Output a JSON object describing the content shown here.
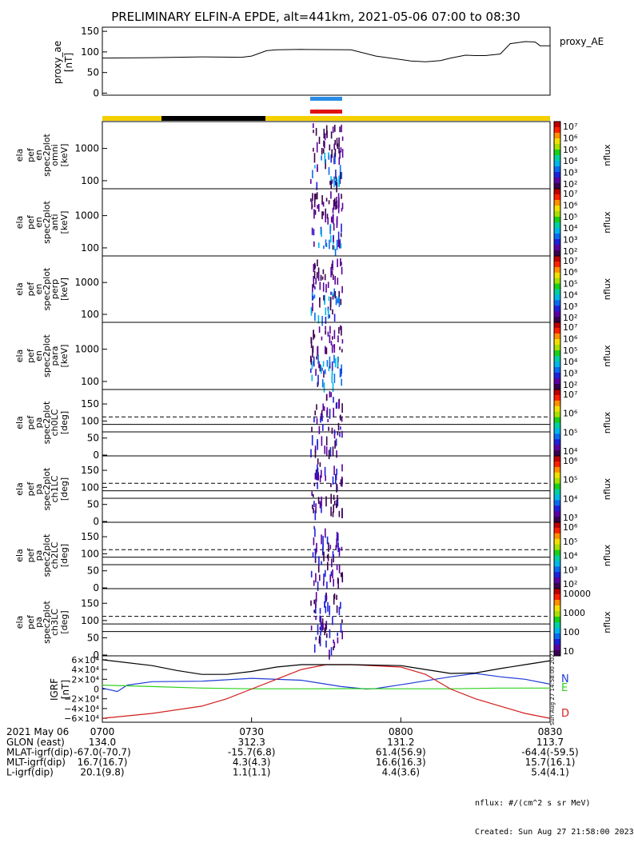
{
  "title": "PRELIMINARY ELFIN-A EPDE, alt=441km, 2021-05-06 07:00 to 08:30",
  "colors": {
    "band_yellow": "#f5d000",
    "band_black": "#000000",
    "indicator_blue": "#2b8ce8",
    "indicator_red": "#e01010",
    "grf_N": "#1f3bd6",
    "grf_E": "#2fd11f",
    "grf_D": "#d21d1d"
  },
  "chart_data": [
    {
      "type": "line",
      "id": "proxy_ae",
      "ylabel": "proxy_ae\n[nT]",
      "legend": "proxy_AE",
      "ylim": [
        -5,
        160
      ],
      "yticks": [
        0,
        50,
        100,
        150
      ],
      "x_minutes": [
        0,
        10,
        20,
        28,
        30,
        33,
        35,
        40,
        50,
        55,
        62,
        65,
        68,
        70,
        73,
        75,
        77,
        80,
        82,
        85,
        87,
        88,
        90
      ],
      "values": [
        85,
        86,
        88,
        87,
        90,
        103,
        105,
        106,
        105,
        90,
        78,
        76,
        79,
        85,
        92,
        91,
        91,
        95,
        120,
        125,
        124,
        115,
        115
      ]
    },
    {
      "type": "heatmap",
      "id": "omni",
      "ylabel": [
        "ela",
        "pef",
        "en",
        "spec2plot",
        "omni",
        "[keV]"
      ],
      "yticks": [
        "1000",
        "100"
      ],
      "colorbar": {
        "label": "nflux",
        "ticks": [
          "10^7",
          "10^6",
          "10^5",
          "10^4",
          "10^3",
          "10^2"
        ]
      }
    },
    {
      "type": "heatmap",
      "id": "anti",
      "ylabel": [
        "ela",
        "pef",
        "en",
        "spec2plot",
        "anti",
        "[keV]"
      ],
      "yticks": [
        "1000",
        "100"
      ],
      "colorbar": {
        "label": "nflux",
        "ticks": [
          "10^7",
          "10^6",
          "10^5",
          "10^4",
          "10^3",
          "10^2"
        ]
      }
    },
    {
      "type": "heatmap",
      "id": "perp",
      "ylabel": [
        "ela",
        "pef",
        "en",
        "spec2plot",
        "perp",
        "[keV]"
      ],
      "yticks": [
        "1000",
        "100"
      ],
      "colorbar": {
        "label": "nflux",
        "ticks": [
          "10^7",
          "10^6",
          "10^5",
          "10^4",
          "10^3",
          "10^2"
        ]
      }
    },
    {
      "type": "heatmap",
      "id": "para",
      "ylabel": [
        "ela",
        "pef",
        "en",
        "spec2plot",
        "para",
        "[keV]"
      ],
      "yticks": [
        "1000",
        "100"
      ],
      "colorbar": {
        "label": "nflux",
        "ticks": [
          "10^7",
          "10^6",
          "10^5",
          "10^4",
          "10^3",
          "10^2"
        ]
      }
    },
    {
      "type": "heatmap",
      "id": "ch0LC",
      "ylabel": [
        "ela",
        "pef",
        "pa",
        "spec2plot",
        "ch0LC",
        "[deg]"
      ],
      "yticks": [
        "150",
        "100",
        "50",
        "0"
      ],
      "colorbar": {
        "label": "nflux",
        "ticks": [
          "10^7",
          "10^6",
          "10^5",
          "10^4"
        ]
      }
    },
    {
      "type": "heatmap",
      "id": "ch1LC",
      "ylabel": [
        "ela",
        "pef",
        "pa",
        "spec2plot",
        "ch1LC",
        "[deg]"
      ],
      "yticks": [
        "150",
        "100",
        "50",
        "0"
      ],
      "colorbar": {
        "label": "nflux",
        "ticks": [
          "10^6",
          "10^5",
          "10^4",
          "10^3"
        ]
      }
    },
    {
      "type": "heatmap",
      "id": "ch2LC",
      "ylabel": [
        "ela",
        "pef",
        "pa",
        "spec2plot",
        "ch2LC",
        "[deg]"
      ],
      "yticks": [
        "150",
        "100",
        "50",
        "0"
      ],
      "colorbar": {
        "label": "nflux",
        "ticks": [
          "10^6",
          "10^5",
          "10^4",
          "10^3",
          "10^2"
        ]
      }
    },
    {
      "type": "heatmap",
      "id": "ch3LC",
      "ylabel": [
        "ela",
        "pef",
        "pa",
        "spec2plot",
        "ch3LC",
        "[deg]"
      ],
      "yticks": [
        "150",
        "100",
        "50",
        "0"
      ],
      "colorbar": {
        "label": "nflux",
        "ticks": [
          "10000",
          "1000",
          "100",
          "10"
        ]
      }
    },
    {
      "type": "line",
      "id": "igrf",
      "ylabel": "IGRF\n[nT]",
      "yticks": [
        "6×10^4",
        "4×10^4",
        "2×10^4",
        "0",
        "−2×10^4",
        "−4×10^4",
        "−6×10^4"
      ],
      "ylim": [
        -68000,
        68000
      ],
      "series": [
        {
          "name": "N",
          "color": "#1f3bd6",
          "x_minutes": [
            0,
            3,
            5,
            10,
            20,
            30,
            40,
            48,
            53,
            55,
            62,
            70,
            75,
            80,
            85,
            90
          ],
          "values": [
            2000,
            -5000,
            8000,
            15000,
            16000,
            22000,
            18000,
            5000,
            0,
            1000,
            12000,
            25000,
            32000,
            25000,
            20000,
            10000
          ]
        },
        {
          "name": "E",
          "color": "#2fd11f",
          "x_minutes": [
            0,
            10,
            20,
            30,
            40,
            50,
            60,
            70,
            80,
            90
          ],
          "values": [
            8000,
            5000,
            2000,
            500,
            500,
            800,
            500,
            500,
            2000,
            2000
          ]
        },
        {
          "name": "D",
          "color": "#d21d1d",
          "x_minutes": [
            0,
            10,
            20,
            25,
            30,
            35,
            40,
            45,
            50,
            60,
            65,
            70,
            75,
            80,
            85,
            90
          ],
          "values": [
            -60000,
            -50000,
            -35000,
            -20000,
            0,
            20000,
            40000,
            50000,
            50000,
            45000,
            30000,
            0,
            -20000,
            -35000,
            -50000,
            -60000
          ]
        },
        {
          "name": "",
          "color": "#000000",
          "x_minutes": [
            0,
            10,
            15,
            20,
            25,
            30,
            35,
            40,
            45,
            50,
            60,
            65,
            70,
            75,
            80,
            85,
            90
          ],
          "values": [
            60000,
            48000,
            38000,
            30000,
            30000,
            36000,
            45000,
            50000,
            50000,
            50000,
            48000,
            40000,
            32000,
            33000,
            42000,
            50000,
            58000
          ]
        }
      ]
    }
  ],
  "time_axis": {
    "labels": [
      "0700",
      "0730",
      "0800",
      "0830"
    ],
    "date_label": "2021 May 06"
  },
  "footer": {
    "rows": [
      {
        "label": "GLON (east)",
        "vals": [
          "134.0",
          "312.3",
          "131.2",
          "113.7"
        ]
      },
      {
        "label": "MLAT-igrf(dip)",
        "vals": [
          "-67.0(-70.7)",
          "-15.7(6.8)",
          "61.4(56.9)",
          "-64.4(-59.5)"
        ]
      },
      {
        "label": "MLT-igrf(dip)",
        "vals": [
          "16.7(16.7)",
          "4.3(4.3)",
          "16.6(16.3)",
          "15.7(16.1)"
        ]
      },
      {
        "label": "L-igrf(dip)",
        "vals": [
          "20.1(9.8)",
          "1.1(1.1)",
          "4.4(3.6)",
          "5.4(4.1)"
        ]
      }
    ],
    "note1": "nflux: #/(cm^2 s sr MeV)",
    "note2": "Created: Sun Aug 27 21:58:00 2023",
    "side_stamp": "Sun Aug 27 14:58:00 2023"
  }
}
